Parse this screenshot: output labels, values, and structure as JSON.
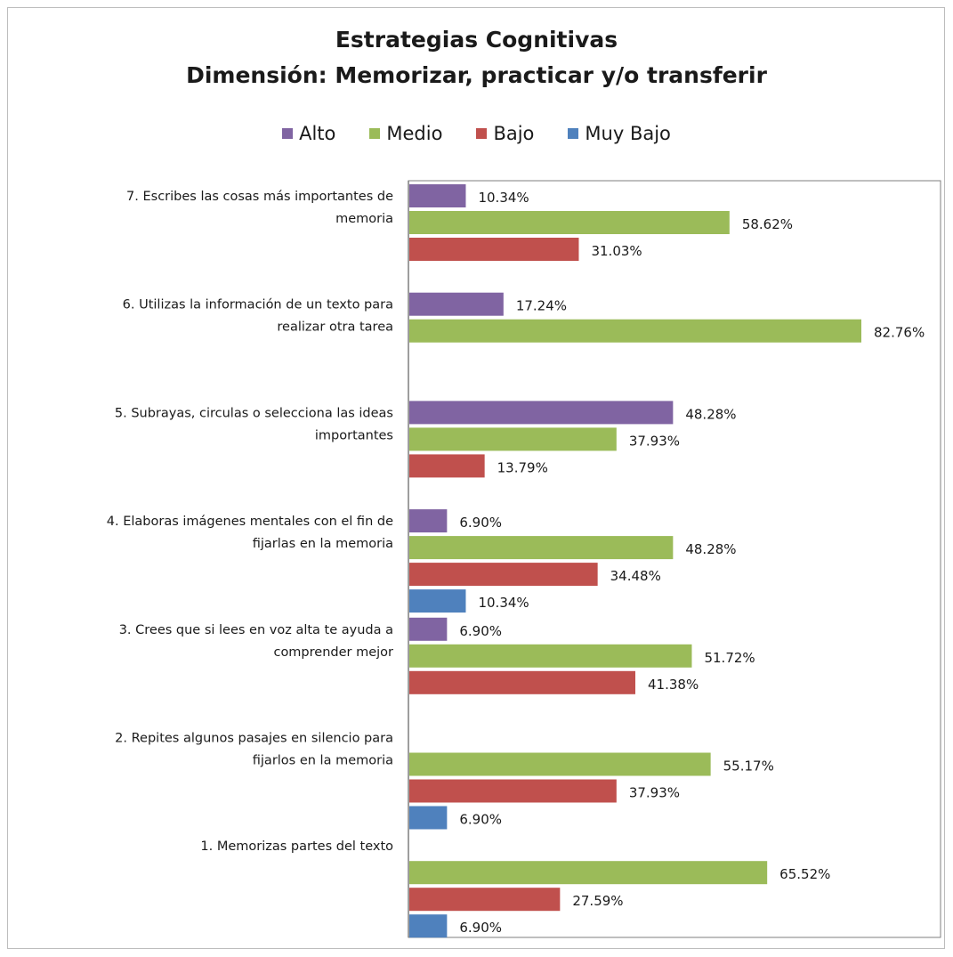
{
  "chart_data": {
    "type": "bar",
    "orientation": "horizontal",
    "title": "Estrategias Cognitivas",
    "subtitle": "Dimensión: Memorizar, practicar y/o transferir",
    "legend_position": "top",
    "value_format": "percent",
    "xlim": [
      0,
      83
    ],
    "categories": [
      {
        "lines": [
          "7. Escribes las cosas más  importantes de",
          "memoria"
        ]
      },
      {
        "lines": [
          "6. Utilizas la información de un texto para",
          "realizar otra tarea"
        ]
      },
      {
        "lines": [
          "5. Subrayas, circulas o selecciona las ideas",
          "importantes"
        ]
      },
      {
        "lines": [
          "4. Elaboras imágenes mentales con el fin de",
          "fijarlas en la memoria"
        ]
      },
      {
        "lines": [
          "3. Crees que si lees en voz alta te ayuda a",
          "comprender mejor"
        ]
      },
      {
        "lines": [
          "2. Repites algunos pasajes en silencio para",
          "fijarlos en la memoria"
        ]
      },
      {
        "lines": [
          "1. Memorizas partes del texto"
        ]
      }
    ],
    "series": [
      {
        "name": "Alto",
        "color": "#8064A2",
        "values": [
          10.34,
          17.24,
          48.28,
          6.9,
          6.9,
          null,
          null
        ]
      },
      {
        "name": "Medio",
        "color": "#9BBB59",
        "values": [
          58.62,
          82.76,
          37.93,
          48.28,
          51.72,
          55.17,
          65.52
        ]
      },
      {
        "name": "Bajo",
        "color": "#C0504D",
        "values": [
          31.03,
          null,
          13.79,
          34.48,
          41.38,
          37.93,
          27.59
        ]
      },
      {
        "name": "Muy Bajo",
        "color": "#4F81BD",
        "values": [
          null,
          null,
          null,
          10.34,
          null,
          6.9,
          6.9
        ]
      }
    ]
  }
}
